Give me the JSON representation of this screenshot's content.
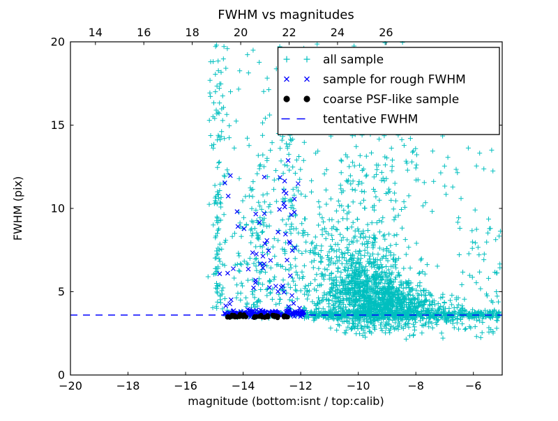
{
  "chart_data": {
    "type": "scatter",
    "title": "FWHM vs magnitudes",
    "xlabel": "magnitude (bottom:isnt / top:calib)",
    "ylabel": "FWHM (pix)",
    "xlim": [
      -20,
      -5
    ],
    "ylim": [
      0,
      20
    ],
    "xlim_top": [
      12.97,
      30.8
    ],
    "grid": false,
    "legend_position": "upper right",
    "bottom_ticks": {
      "values": [
        -20,
        -18,
        -16,
        -14,
        -12,
        -10,
        -8,
        -6
      ],
      "labels": [
        "−20",
        "−18",
        "−16",
        "−14",
        "−12",
        "−10",
        "−8",
        "−6"
      ]
    },
    "top_ticks": {
      "values": [
        14,
        16,
        18,
        20,
        22,
        24,
        26
      ],
      "labels": [
        "14",
        "16",
        "18",
        "20",
        "22",
        "24",
        "26"
      ]
    },
    "y_ticks": {
      "values": [
        0,
        5,
        10,
        15,
        20
      ],
      "labels": [
        "0",
        "5",
        "10",
        "15",
        "20"
      ]
    },
    "tentative_fwhm": 3.6,
    "seed": 42,
    "series": [
      {
        "name": "all sample",
        "marker": "plus",
        "color": "#00bfbf",
        "clusters": [
          {
            "dist": "col",
            "cx": -14.85,
            "sx": 0.1,
            "y0": 3.8,
            "y1": 11.5,
            "n": 70
          },
          {
            "dist": "col",
            "cx": -14.8,
            "sx": 0.15,
            "y0": 11.5,
            "y1": 20,
            "n": 40
          },
          {
            "dist": "col",
            "cx": -13.4,
            "sx": 0.28,
            "y0": 3.9,
            "y1": 14,
            "n": 55
          },
          {
            "dist": "col",
            "cx": -12.25,
            "sx": 0.18,
            "y0": 3.9,
            "y1": 15,
            "n": 50
          },
          {
            "dist": "uniform",
            "x0": -15.3,
            "x1": -11.0,
            "y0": 3.8,
            "y1": 20,
            "n": 160
          },
          {
            "dist": "uniform",
            "x0": -14.3,
            "x1": -10.9,
            "y0": 3.8,
            "y1": 9.5,
            "n": 150
          },
          {
            "dist": "gauss",
            "cx": -9.6,
            "cy": 4.8,
            "sx": 0.85,
            "sy": 1.0,
            "n": 780
          },
          {
            "dist": "gauss",
            "cx": -8.7,
            "cy": 4.1,
            "sx": 0.9,
            "sy": 0.45,
            "n": 360
          },
          {
            "dist": "gauss",
            "cx": -9.9,
            "cy": 6.8,
            "sx": 0.65,
            "sy": 1.6,
            "n": 280
          },
          {
            "dist": "gauss",
            "cx": -9.4,
            "cy": 11.5,
            "sx": 0.9,
            "sy": 1.5,
            "n": 120
          },
          {
            "dist": "uniform",
            "x0": -11.0,
            "x1": -6.0,
            "y0": 14,
            "y1": 20,
            "n": 30
          },
          {
            "dist": "band",
            "x0": -14.6,
            "x1": -5.1,
            "cy": 3.62,
            "sy": 0.1,
            "n": 300
          },
          {
            "dist": "band",
            "x0": -11.9,
            "x1": -5.1,
            "cy": 3.62,
            "sy": 0.16,
            "n": 340
          },
          {
            "dist": "band",
            "x0": -11.0,
            "x1": -5.1,
            "cy": 3.05,
            "sy": 0.35,
            "n": 120
          },
          {
            "dist": "uniform",
            "x0": -6.6,
            "x1": -5.05,
            "y0": 4.2,
            "y1": 9.5,
            "n": 45
          },
          {
            "dist": "uniform",
            "x0": -8.0,
            "x1": -5.05,
            "y0": 9.5,
            "y1": 16,
            "n": 25
          }
        ]
      },
      {
        "name": "sample for rough FWHM",
        "marker": "x",
        "color": "#0000ff",
        "clusters": [
          {
            "dist": "band",
            "x0": -14.65,
            "x1": -11.85,
            "cy": 3.68,
            "sy": 0.09,
            "n": 170
          },
          {
            "dist": "col",
            "cx": -14.5,
            "sx": 0.12,
            "y0": 4,
            "y1": 12,
            "n": 10
          },
          {
            "dist": "col",
            "cx": -13.4,
            "sx": 0.25,
            "y0": 4,
            "y1": 12,
            "n": 16
          },
          {
            "dist": "col",
            "cx": -12.4,
            "sx": 0.18,
            "y0": 4,
            "y1": 13,
            "n": 22
          },
          {
            "dist": "uniform",
            "x0": -14.2,
            "x1": -12.0,
            "y0": 4,
            "y1": 9,
            "n": 12
          }
        ]
      },
      {
        "name": "coarse PSF-like sample",
        "marker": "dot",
        "color": "#000000",
        "clusters": [
          {
            "dist": "band",
            "x0": -14.55,
            "x1": -13.87,
            "cy": 3.52,
            "sy": 0.05,
            "n": 22
          },
          {
            "dist": "band",
            "x0": -13.68,
            "x1": -13.14,
            "cy": 3.52,
            "sy": 0.05,
            "n": 18
          },
          {
            "dist": "band",
            "x0": -13.0,
            "x1": -12.78,
            "cy": 3.52,
            "sy": 0.05,
            "n": 8
          },
          {
            "dist": "band",
            "x0": -12.6,
            "x1": -12.45,
            "cy": 3.54,
            "sy": 0.04,
            "n": 6
          }
        ]
      },
      {
        "name": "tentative FWHM",
        "marker": "dashed-line",
        "color": "#0000ff",
        "value": 3.6
      }
    ]
  }
}
